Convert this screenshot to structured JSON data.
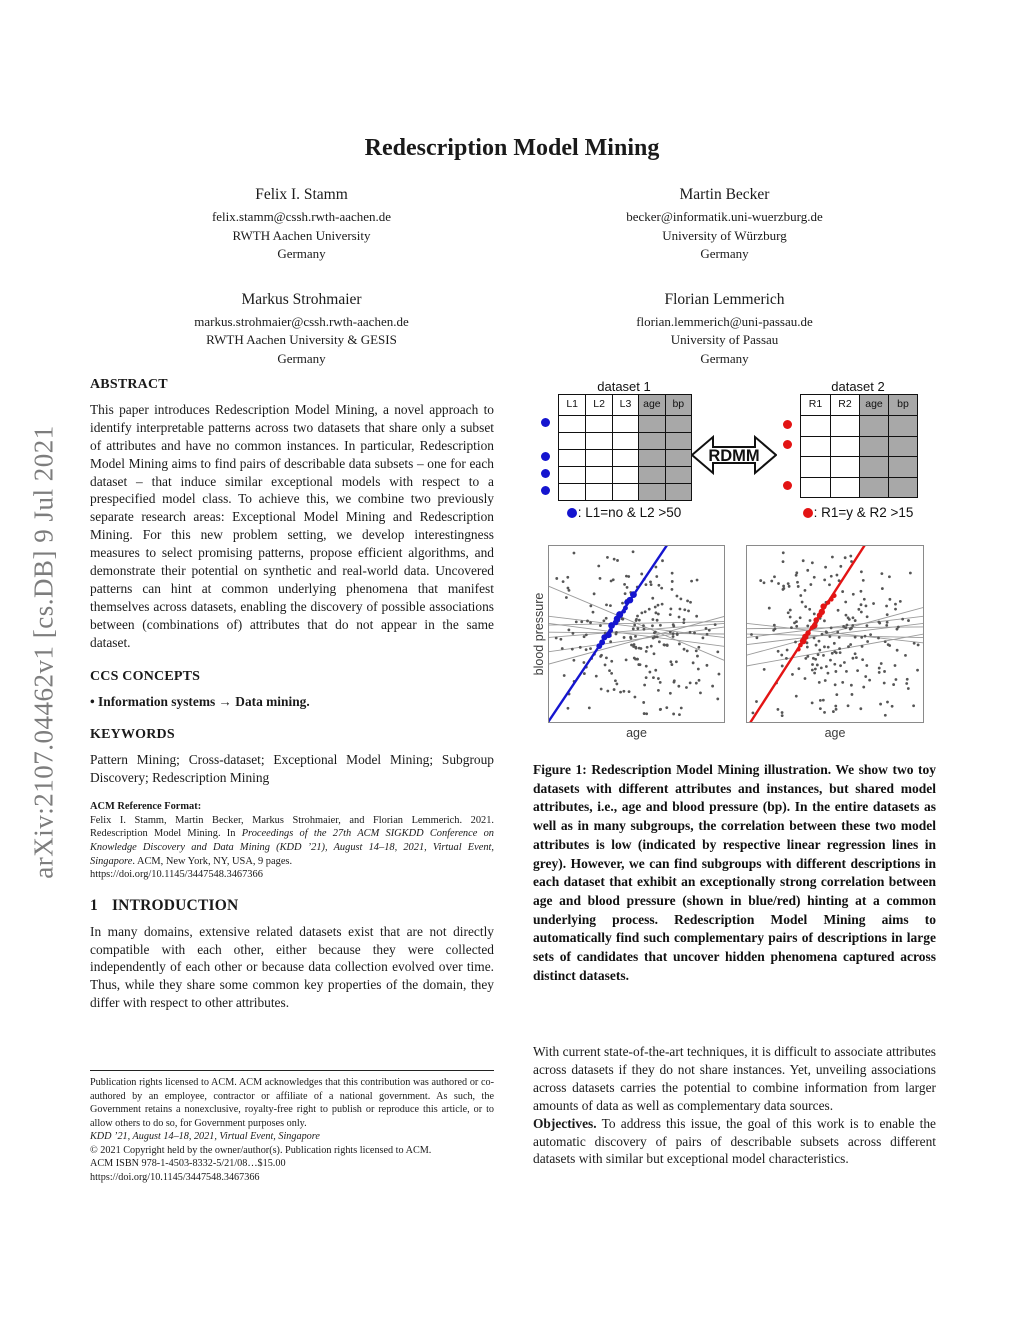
{
  "arxiv_banner": "arXiv:2107.04462v1  [cs.DB]  9 Jul 2021",
  "title": "Redescription Model Mining",
  "authors": [
    {
      "name": "Felix I. Stamm",
      "email": "felix.stamm@cssh.rwth-aachen.de",
      "affiliation": "RWTH Aachen University",
      "country": "Germany"
    },
    {
      "name": "Martin Becker",
      "email": "becker@informatik.uni-wuerzburg.de",
      "affiliation": "University of Würzburg",
      "country": "Germany"
    },
    {
      "name": "Markus Strohmaier",
      "email": "markus.strohmaier@cssh.rwth-aachen.de",
      "affiliation": "RWTH Aachen University & GESIS",
      "country": "Germany"
    },
    {
      "name": "Florian Lemmerich",
      "email": "florian.lemmerich@uni-passau.de",
      "affiliation": "University of Passau",
      "country": "Germany"
    }
  ],
  "abstract": {
    "heading": "ABSTRACT",
    "body": "This paper introduces Redescription Model Mining, a novel approach to identify interpretable patterns across two datasets that share only a subset of attributes and have no common instances. In particular, Redescription Model Mining aims to find pairs of describable data subsets – one for each dataset – that induce similar exceptional models with respect to a prespecified model class. To achieve this, we combine two previously separate research areas: Exceptional Model Mining and Redescription Mining. For this new problem setting, we develop interestingness measures to select promising patterns, propose efficient algorithms, and demonstrate their potential on synthetic and real-world data. Uncovered patterns can hint at common underlying phenomena that manifest themselves across datasets, enabling the discovery of possible associations between (combinations of) attributes that do not appear in the same dataset."
  },
  "ccs": {
    "heading": "CCS CONCEPTS",
    "body": "• Information systems → Data mining."
  },
  "keywords": {
    "heading": "KEYWORDS",
    "body": "Pattern Mining; Cross-dataset; Exceptional Model Mining; Subgroup Discovery; Redescription Mining"
  },
  "acm_ref": {
    "heading": "ACM Reference Format:",
    "text1": "Felix I. Stamm, Martin Becker, Markus Strohmaier, and Florian Lemmerich. 2021. Redescription Model Mining. In ",
    "italic": "Proceedings of the 27th ACM SIGKDD Conference on Knowledge Discovery and Data Mining (KDD ’21), August 14–18, 2021, Virtual Event, Singapore",
    "text2": ". ACM, New York, NY, USA, 9 pages. ",
    "doi": "https://doi.org/10.1145/3447548.3467366"
  },
  "intro": {
    "number": "1",
    "heading": "INTRODUCTION",
    "body": "In many domains, extensive related datasets exist that are not directly compatible with each other, either because they were collected independently of each other or because data collection evolved over time. Thus, while they share some common key properties of the domain, they differ with respect to other attributes."
  },
  "footnote": {
    "license": "Publication rights licensed to ACM. ACM acknowledges that this contribution was authored or co-authored by an employee, contractor or affiliate of a national government. As such, the Government retains a nonexclusive, royalty-free right to publish or reproduce this article, or to allow others to do so, for Government purposes only.",
    "venue": "KDD ’21, August 14–18, 2021, Virtual Event, Singapore",
    "copyright": "© 2021 Copyright held by the owner/author(s). Publication rights licensed to ACM.",
    "isbn": "ACM ISBN 978-1-4503-8332-5/21/08…$15.00",
    "doi": "https://doi.org/10.1145/3447548.3467366"
  },
  "figure": {
    "caption": "Figure 1: Redescription Model Mining illustration. We show two toy datasets with different attributes and instances, but shared model attributes, i.e., age and blood pressure (bp). In the entire datasets as well as in many subgroups, the correlation between these two model attributes is low (indicated by respective linear regression lines in grey). However, we can find subgroups with different descriptions in each dataset that exhibit an exceptionally strong correlation between age and blood pressure (shown in blue/red) hinting at a common underlying process. Redescription Model Mining aims to automatically find such complementary pairs of descriptions in large sets of candidates that uncover hidden phenomena captured across distinct datasets.",
    "arrow_label": "RDMM",
    "colors": {
      "blue": "#1515cf",
      "red": "#e31414",
      "table_shade": "#a8a8a8",
      "scatter_dot": "#565656",
      "reg_line": "#9b9b9b",
      "plot_border": "#8a8a8a"
    },
    "dataset1": {
      "title": "dataset 1",
      "columns": [
        "L1",
        "L2",
        "L3",
        "age",
        "bp"
      ],
      "shaded_from": 3,
      "rows": 5,
      "dot_rows": [
        0,
        2,
        3,
        4
      ],
      "legend": ": L1=no & L2 >50",
      "dot_color": "blue"
    },
    "dataset2": {
      "title": "dataset 2",
      "columns": [
        "R1",
        "R2",
        "age",
        "bp"
      ],
      "shaded_from": 2,
      "rows": 4,
      "dot_rows": [
        0,
        1,
        3
      ],
      "legend": ": R1=y & R2 >15",
      "dot_color": "red"
    },
    "plots": {
      "ylabel": "blood pressure",
      "xlabel": "age",
      "panels": [
        {
          "name": "dataset1-panel",
          "seed": 42,
          "n_points": 225,
          "accent": "blue",
          "line": [
            -0.03,
            1.04,
            0.7,
            -0.04
          ],
          "cluster": {
            "t0": 0.44,
            "t1": 0.7,
            "n": 14
          },
          "gray_lines": [
            [
              0,
              0.23,
              1,
              0.65
            ],
            [
              0,
              0.45,
              1,
              0.43
            ],
            [
              0,
              0.49,
              1,
              0.5
            ],
            [
              0,
              0.52,
              1,
              0.44
            ],
            [
              0,
              0.44,
              1,
              0.57
            ],
            [
              0,
              0.6,
              1,
              0.46
            ],
            [
              0,
              0.67,
              1,
              0.4
            ],
            [
              0,
              0.4,
              1,
              0.52
            ]
          ]
        },
        {
          "name": "dataset2-panel",
          "seed": 77,
          "n_points": 225,
          "accent": "red",
          "line": [
            -0.01,
            1.05,
            0.7,
            -0.05
          ],
          "cluster": {
            "t0": 0.42,
            "t1": 0.7,
            "n": 14
          },
          "gray_lines": [
            [
              0,
              0.52,
              1,
              0.4
            ],
            [
              0,
              0.47,
              1,
              0.46
            ],
            [
              0,
              0.5,
              1,
              0.52
            ],
            [
              0,
              0.56,
              1,
              0.44
            ],
            [
              0,
              0.62,
              1,
              0.35
            ],
            [
              0,
              0.68,
              1,
              0.5
            ],
            [
              0,
              0.44,
              1,
              0.55
            ]
          ]
        }
      ]
    }
  },
  "chart_data": [
    {
      "type": "scatter",
      "title": "dataset 1: age vs blood pressure (toy data, no numeric ticks)",
      "xlabel": "age",
      "ylabel": "blood pressure",
      "series": [
        {
          "name": "all instances",
          "style": "small grey dots, ~225 points, no overall trend"
        },
        {
          "name": "subgroup regression lines",
          "style": "grey lines with near-zero slopes (low correlation)"
        },
        {
          "name": "subgroup L1=no & L2 >50",
          "style": "blue dots on steep blue regression line",
          "trend": "exceptionally strong positive correlation"
        }
      ]
    },
    {
      "type": "scatter",
      "title": "dataset 2: age vs blood pressure (toy data, no numeric ticks)",
      "xlabel": "age",
      "ylabel": "blood pressure",
      "series": [
        {
          "name": "all instances",
          "style": "small grey dots, ~225 points, no overall trend"
        },
        {
          "name": "subgroup regression lines",
          "style": "grey lines with near-zero slopes (low correlation)"
        },
        {
          "name": "subgroup R1=y & R2 >15",
          "style": "red dots on steep red regression line",
          "trend": "exceptionally strong positive correlation"
        }
      ]
    }
  ],
  "right_column": {
    "para1": "With current state-of-the-art techniques, it is difficult to associate attributes across datasets if they do not share instances. Yet, unveiling associations across datasets carries the potential to combine information from larger amounts of data as well as complementary data sources.",
    "objectives_label": "Objectives.",
    "objectives_text": "To address this issue, the goal of this work is to enable the automatic discovery of pairs of describable subsets across different datasets with similar but exceptional model characteristics."
  }
}
